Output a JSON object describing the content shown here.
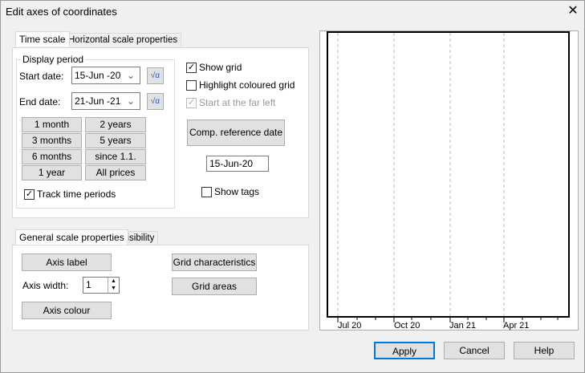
{
  "window": {
    "title": "Edit axes of coordinates",
    "close_icon": "close-icon"
  },
  "top_tabs": [
    {
      "label": "Time scale",
      "active": true
    },
    {
      "label": "Horizontal scale properties",
      "active": false
    }
  ],
  "display_period": {
    "legend": "Display period",
    "start_label": "Start date:",
    "start_value": "15-Jun -20",
    "end_label": "End date:",
    "end_value": "21-Jun -21"
  },
  "period_buttons": [
    "1 month",
    "2 years",
    "3 months",
    "5 years",
    "6 months",
    "since 1.1.",
    "1 year",
    "All prices"
  ],
  "track_time_periods": {
    "label": "Track time periods",
    "checked": true
  },
  "show_grid": {
    "label": "Show grid",
    "checked": true
  },
  "highlight_grid": {
    "label": "Highlight coloured grid",
    "checked": false
  },
  "far_left": {
    "label": "Start at the far left",
    "checked": true,
    "disabled": true
  },
  "comp_ref": {
    "label": "Comp. reference date",
    "value": "15-Jun-20"
  },
  "show_tags": {
    "label": "Show tags",
    "checked": false
  },
  "bottom_tabs": [
    {
      "label": "General scale properties",
      "active": true
    },
    {
      "label": "Visibility",
      "active": false
    }
  ],
  "general": {
    "axis_label": "Axis label",
    "axis_width_label": "Axis width:",
    "axis_width_value": "1",
    "axis_colour": "Axis colour",
    "grid_characteristics": "Grid characteristics",
    "grid_areas": "Grid areas"
  },
  "preview": {
    "tick_labels": [
      "Jul 20",
      "Oct 20",
      "Jan 21",
      "Apr 21"
    ]
  },
  "footer": {
    "apply": "Apply",
    "cancel": "Cancel",
    "help": "Help"
  }
}
